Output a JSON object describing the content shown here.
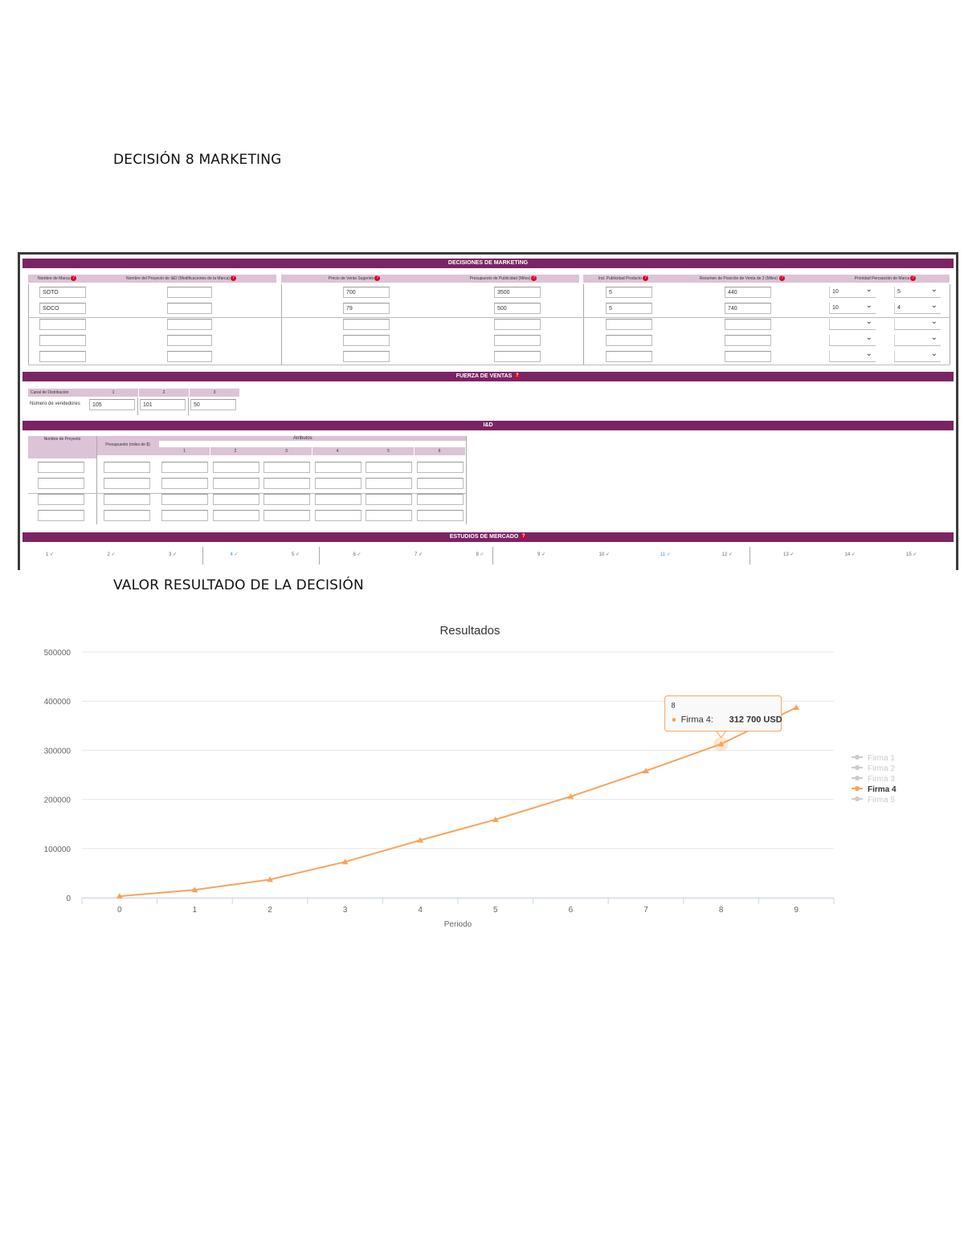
{
  "heading_top": "DECISIÓN 8 MARKETING",
  "heading_result": "VALOR RESULTADO DE LA DECISIÓN",
  "panel": {
    "marketing_bar": "DECISIONES DE MARKETING",
    "marketing_headers": [
      "Nombre de Marca",
      "Nombre del Proyecto de I&D (Modificaciones de la Marca)",
      "Precio de Venta Sugerido",
      "Presupuesto de Publicidad (Miles)",
      "Ind. Publicidad Producto",
      "Resumen de Posición de Venta de 2 (Miles) ",
      "Prioridad Percepción de Marca"
    ],
    "rows": [
      {
        "brand": "SOTO",
        "price": "700",
        "advert": "3500",
        "index": "5",
        "pos": "440",
        "sel1": "10",
        "sel2": "5"
      },
      {
        "brand": "SOCO",
        "price": "79",
        "advert": "500",
        "index": "5",
        "pos": "740",
        "sel1": "10",
        "sel2": "4"
      }
    ],
    "sales_bar": "FUERZA DE VENTAS",
    "sales_headers": [
      "Canal de Distribución",
      "1",
      "2",
      "3"
    ],
    "sales_row_label": "Número de vendedores",
    "sales_values": [
      "105",
      "101",
      "50"
    ],
    "rd_bar": "I&D",
    "rd_headers": {
      "project": "Nombre de Proyecto",
      "budget": "Presupuesto (miles de $)",
      "attributes": "Atributos",
      "attr_cols": [
        "1",
        "2",
        "3",
        "4",
        "5",
        "6"
      ]
    },
    "market_bar": "ESTUDIOS DE MERCADO",
    "market_studies": [
      "1",
      "2",
      "3",
      "4",
      "5",
      "6",
      "7",
      "8",
      "9",
      "10",
      "11",
      "12",
      "13",
      "14",
      "15"
    ]
  },
  "colors": {
    "bar": "#7b2464",
    "header": "#dcc3d6",
    "help": "#d6002a",
    "series": "#f7a35c",
    "grid": "#e6e6e6",
    "legend_inactive": "#cccccc"
  },
  "chart_data": {
    "type": "line",
    "title": "Resultados",
    "xlabel": "Periodo",
    "ylabel": "",
    "x": [
      0,
      1,
      2,
      3,
      4,
      5,
      6,
      7,
      8,
      9
    ],
    "ylim": [
      0,
      500000
    ],
    "yticks": [
      0,
      100000,
      200000,
      300000,
      400000,
      500000
    ],
    "series": [
      {
        "name": "Firma 1",
        "visible": false
      },
      {
        "name": "Firma 2",
        "visible": false
      },
      {
        "name": "Firma 3",
        "visible": false
      },
      {
        "name": "Firma 4",
        "visible": true,
        "values": [
          3000,
          16000,
          37000,
          73000,
          117000,
          159000,
          206000,
          258000,
          312700,
          387000
        ]
      },
      {
        "name": "Firma 5",
        "visible": false
      }
    ],
    "legend_position": "right",
    "tooltip": {
      "x": "8",
      "series": "Firma 4",
      "value": "312 700 USD"
    }
  }
}
